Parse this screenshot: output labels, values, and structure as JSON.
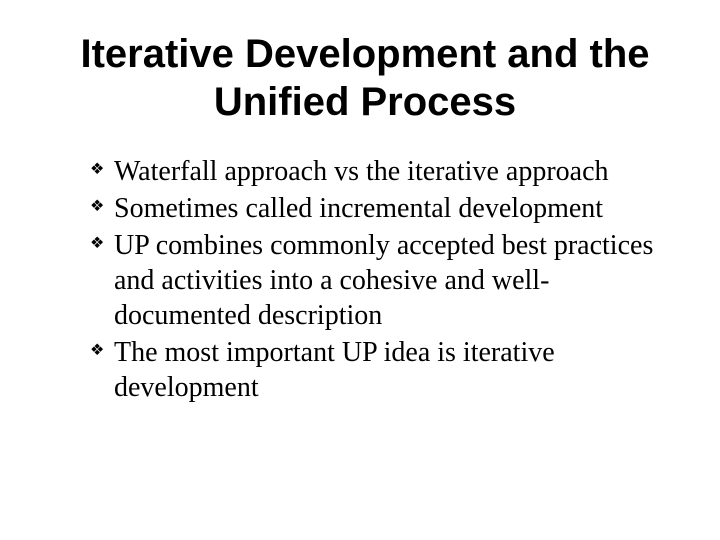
{
  "slide": {
    "title": "Iterative Development and the Unified Process",
    "bullets": [
      {
        "text": "Waterfall approach vs the iterative approach"
      },
      {
        "text": "Sometimes called incremental development"
      },
      {
        "text": "UP combines commonly accepted best practices and activities into a cohesive and well-documented description"
      },
      {
        "text": "The most important UP idea is iterative development"
      }
    ],
    "style": {
      "title_fontsize": 40,
      "title_fontweight": "bold",
      "body_fontsize": 28,
      "title_font": "Arial",
      "body_font": "Times New Roman",
      "text_color": "#000000",
      "background_color": "#ffffff",
      "bullet_glyph": "❖"
    }
  }
}
